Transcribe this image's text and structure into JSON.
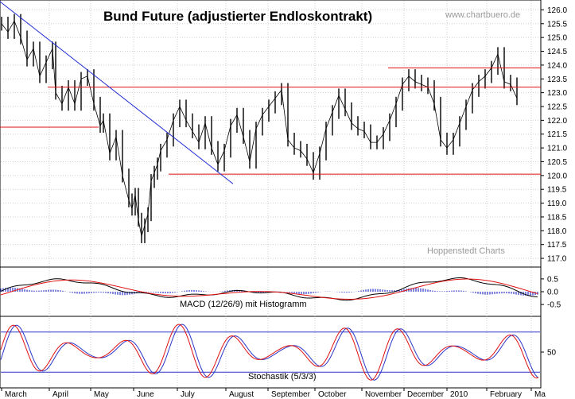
{
  "chart_data": [
    {
      "type": "candlestick",
      "title": "Bund Future (adjustierter Endloskontrakt)",
      "watermarks": [
        "www.chartbuero.de",
        "Hoppenstedt Charts"
      ],
      "x_labels": [
        "March",
        "April",
        "May",
        "June",
        "July",
        "August",
        "September",
        "October",
        "November",
        "December",
        "2010",
        "February",
        "Ma"
      ],
      "y_ticks": [
        126.0,
        125.5,
        125.0,
        124.5,
        124.0,
        123.5,
        123.0,
        122.5,
        122.0,
        121.5,
        121.0,
        120.5,
        120.0,
        119.5,
        119.0,
        118.5,
        118.0,
        117.5,
        117.0
      ],
      "y_tick_labels": [
        "126.0",
        "125.5",
        "125.0",
        "124.5",
        "124.0",
        "123.5",
        "123.0",
        "122.5",
        "122.0",
        "121.5",
        "121.0",
        "120.5",
        "120.0",
        "119.5",
        "119.0",
        "118.5",
        "118.0",
        "117.5",
        "117.0"
      ],
      "ylim": [
        116.8,
        126.3
      ],
      "series": [
        {
          "x": [
            0,
            8,
            16,
            24,
            32,
            40,
            48,
            56,
            64,
            68,
            76,
            84,
            92,
            100,
            108,
            116,
            124,
            128,
            136,
            144,
            152,
            160,
            164,
            168,
            172,
            176,
            180,
            184,
            188,
            192,
            196,
            200,
            208,
            216,
            224,
            232,
            240,
            248,
            256,
            264,
            272,
            280,
            288,
            296,
            304,
            312,
            320,
            328,
            336,
            344,
            352,
            360,
            368,
            376,
            384,
            392,
            400,
            408,
            416,
            424,
            432,
            440,
            448,
            456,
            464,
            472,
            480,
            488,
            496,
            504,
            512,
            520,
            528,
            536,
            544,
            552,
            560,
            568,
            576,
            584,
            592,
            600,
            608,
            616,
            624,
            632,
            640,
            648
          ],
          "close": [
            125.5,
            125.2,
            125.6,
            125.0,
            124.2,
            124.6,
            123.6,
            124.1,
            124.6,
            123.0,
            122.6,
            123.2,
            122.6,
            123.5,
            123.6,
            122.6,
            121.8,
            122.0,
            120.8,
            121.4,
            120.0,
            119.1,
            118.8,
            119.3,
            118.4,
            117.8,
            118.2,
            118.6,
            119.8,
            120.1,
            120.4,
            120.9,
            121.3,
            122.0,
            122.5,
            122.0,
            121.6,
            121.2,
            121.9,
            121.0,
            120.4,
            120.9,
            121.8,
            122.2,
            121.4,
            120.5,
            121.7,
            122.2,
            122.5,
            122.8,
            123.1,
            121.3,
            121.0,
            120.9,
            120.6,
            120.1,
            120.8,
            121.7,
            122.3,
            122.9,
            122.4,
            121.9,
            121.7,
            121.6,
            121.2,
            121.2,
            121.5,
            122.0,
            122.6,
            123.3,
            123.6,
            123.4,
            123.3,
            123.2,
            122.6,
            121.3,
            121.0,
            121.3,
            121.9,
            122.5,
            123.1,
            123.4,
            123.6,
            123.9,
            124.4,
            123.4,
            123.3,
            122.8
          ],
          "name": ""
        }
      ],
      "horizontal_lines": [
        {
          "y": 123.9,
          "x_from": 488,
          "x_to": 680
        },
        {
          "y": 123.2,
          "x_from": 60,
          "x_to": 680
        },
        {
          "y": 121.75,
          "x_from": 0,
          "x_to": 124
        },
        {
          "y": 120.05,
          "x_from": 212,
          "x_to": 680
        }
      ],
      "trendline": {
        "y_from": 126.3,
        "y_to": 119.7,
        "x_from": 0,
        "x_to": 293
      }
    },
    {
      "type": "line",
      "title": "MACD (12/26/9) mit Histogramm",
      "y_ticks": [
        0.5,
        0.0,
        -0.5
      ],
      "y_tick_labels": [
        "0.5",
        "0.0",
        "-0.5"
      ],
      "ylim": [
        -0.9,
        0.9
      ]
    },
    {
      "type": "line",
      "title": "Stochastik (5/3/3)",
      "y_ticks": [
        50
      ],
      "y_tick_labels": [
        "50"
      ],
      "ylim": [
        0,
        100
      ],
      "reference_lines": [
        80,
        20
      ]
    }
  ]
}
